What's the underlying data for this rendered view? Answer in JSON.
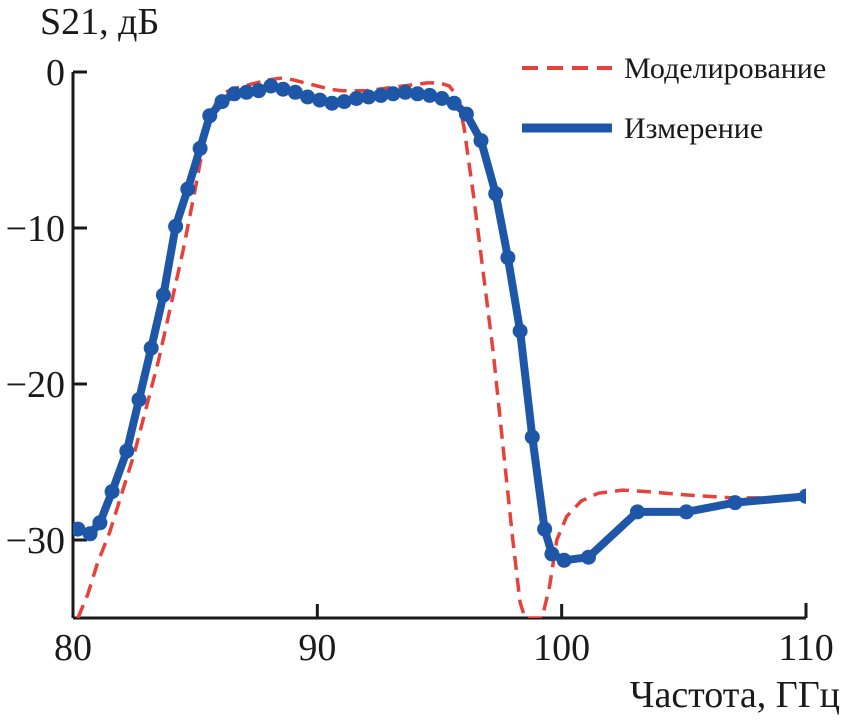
{
  "chart_data": {
    "type": "line",
    "ylabel": "S21, дБ",
    "xlabel": "Частота, ГГц",
    "xlim": [
      80,
      110
    ],
    "ylim": [
      -35,
      0
    ],
    "x_ticks": [
      80,
      90,
      100,
      110
    ],
    "y_ticks": [
      0,
      -10,
      -20,
      -30
    ],
    "x_tick_labels": [
      "80",
      "90",
      "100",
      "110"
    ],
    "y_tick_labels": [
      "0",
      "−10",
      "−20",
      "−30"
    ],
    "legend_position": "top-right",
    "series": [
      {
        "name": "Моделирование",
        "style": "dashed",
        "color": "#e8413c",
        "x": [
          80.2,
          80.6,
          81.0,
          81.5,
          82.0,
          82.5,
          83.0,
          83.5,
          84.0,
          84.5,
          85.0,
          85.3,
          85.6,
          86.0,
          86.5,
          87.0,
          87.5,
          88.0,
          88.5,
          89.0,
          89.5,
          90.0,
          90.5,
          91.0,
          91.5,
          92.0,
          92.5,
          93.0,
          93.5,
          94.0,
          94.5,
          95.0,
          95.4,
          95.7,
          96.0,
          96.4,
          96.8,
          97.2,
          97.6,
          98.0,
          98.3,
          98.5,
          98.6,
          99.0,
          99.2,
          99.5,
          99.8,
          100.2,
          100.8,
          101.5,
          102.5,
          103.5,
          105.0,
          107.0,
          109.0,
          110.0
        ],
        "values": [
          -35,
          -33.5,
          -31.5,
          -29.5,
          -27,
          -24.5,
          -21.5,
          -18.5,
          -15,
          -11.5,
          -7.5,
          -5,
          -2.8,
          -1.5,
          -1.1,
          -0.9,
          -0.7,
          -0.5,
          -0.4,
          -0.5,
          -0.7,
          -0.9,
          -1.1,
          -1.2,
          -1.2,
          -1.2,
          -1.1,
          -1.0,
          -0.9,
          -0.8,
          -0.7,
          -0.7,
          -0.9,
          -1.5,
          -3.5,
          -8,
          -13,
          -18,
          -24,
          -30,
          -34,
          -35,
          -35,
          -35,
          -35,
          -33,
          -30,
          -28.5,
          -27.5,
          -27,
          -26.8,
          -26.9,
          -27.1,
          -27.3,
          -27.3,
          -27.2
        ]
      },
      {
        "name": "Измерение",
        "style": "solid",
        "color": "#1e57a8",
        "x": [
          80.2,
          80.7,
          81.1,
          81.6,
          82.2,
          82.7,
          83.2,
          83.7,
          84.2,
          84.7,
          85.2,
          85.6,
          86.1,
          86.6,
          87.1,
          87.6,
          88.1,
          88.6,
          89.1,
          89.6,
          90.1,
          90.6,
          91.1,
          91.6,
          92.1,
          92.6,
          93.1,
          93.6,
          94.1,
          94.6,
          95.1,
          95.6,
          96.1,
          96.7,
          97.3,
          97.8,
          98.3,
          98.8,
          99.3,
          99.6,
          100.1,
          101.1,
          103.1,
          105.1,
          107.1,
          110.0
        ],
        "values": [
          -29.3,
          -29.6,
          -28.9,
          -26.9,
          -24.3,
          -21.0,
          -17.7,
          -14.3,
          -9.9,
          -7.5,
          -4.9,
          -2.8,
          -1.9,
          -1.4,
          -1.3,
          -1.2,
          -0.9,
          -1.1,
          -1.3,
          -1.6,
          -1.8,
          -2.0,
          -1.9,
          -1.7,
          -1.6,
          -1.5,
          -1.4,
          -1.3,
          -1.4,
          -1.5,
          -1.7,
          -2.0,
          -2.7,
          -4.4,
          -7.8,
          -11.9,
          -16.6,
          -23.4,
          -29.3,
          -30.9,
          -31.3,
          -31.1,
          -28.2,
          -28.2,
          -27.6,
          -27.2
        ]
      }
    ]
  }
}
